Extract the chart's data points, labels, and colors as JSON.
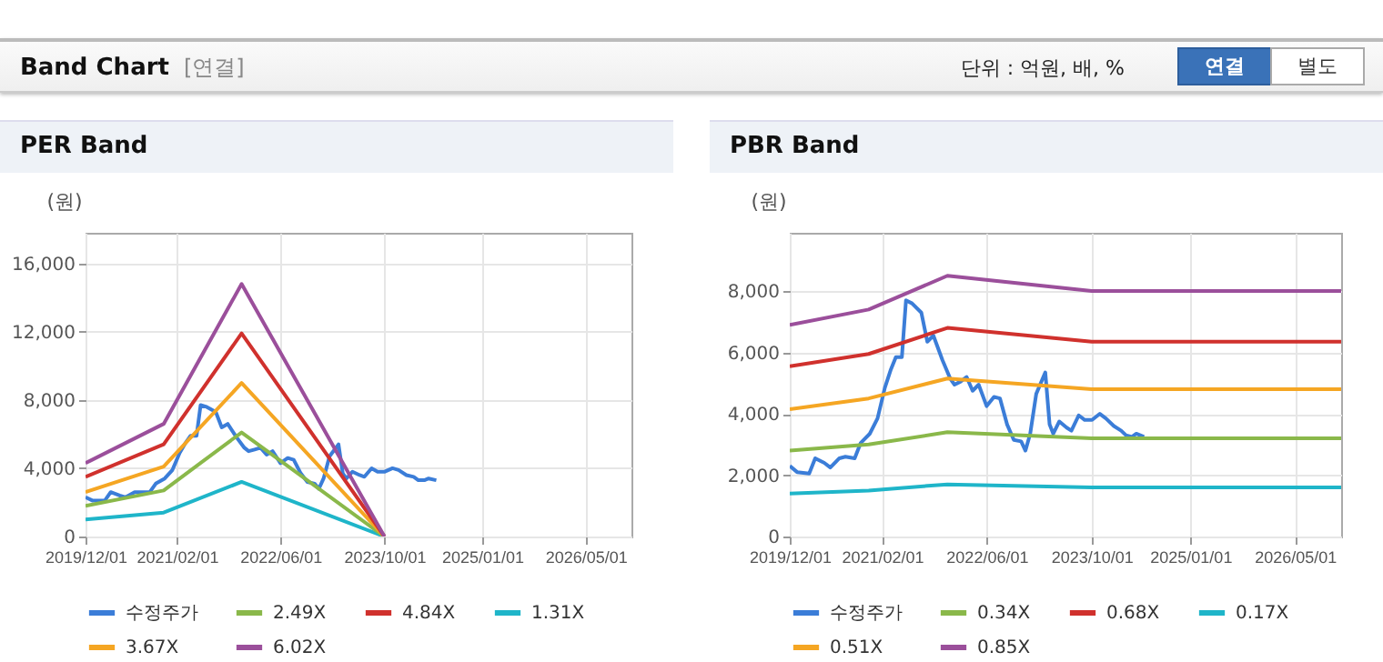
{
  "chart_data": [
    {
      "type": "other",
      "title": "Band Chart",
      "subtitle": "[연결]",
      "annotations": [
        "단위 : 억원, 배, %",
        "연결",
        "별도"
      ]
    },
    {
      "type": "line",
      "title": "PER Band",
      "ylabel": "(원)",
      "legend": "bottom",
      "grid": true,
      "xlim": [
        "2019-12-01",
        "2026-12-01"
      ],
      "xticks": [
        {
          "value": "2019-12-01",
          "label": "2019/12/01"
        },
        {
          "value": "2021-02-01",
          "label": "2021/02/01"
        },
        {
          "value": "2022-06-01",
          "label": "2022/06/01"
        },
        {
          "value": "2023-10-01",
          "label": "2023/10/01"
        },
        {
          "value": "2025-01-01",
          "label": "2025/01/01"
        },
        {
          "value": "2026-05-01",
          "label": "2026/05/01"
        }
      ],
      "ylim": [
        0,
        17800
      ],
      "yticks": [
        0,
        {
          "value": 4000,
          "label": "4,000"
        },
        {
          "value": 8000,
          "label": "8,000"
        },
        {
          "value": 12000,
          "label": "12,000"
        },
        {
          "value": 16000,
          "label": "16,000"
        }
      ],
      "series": [
        {
          "name": "수정주가",
          "color": "#3b7dd8",
          "x": [
            "2019-12-01",
            "2020-01-04",
            "2020-02-29",
            "2020-03-28",
            "2020-05-09",
            "2020-06-06",
            "2020-07-18",
            "2020-08-15",
            "2020-09-27",
            "2020-10-25",
            "2020-12-06",
            "2021-01-11",
            "2021-02-14",
            "2021-03-14",
            "2021-04-06",
            "2021-05-04",
            "2021-05-23",
            "2021-06-20",
            "2021-08-02",
            "2021-08-30",
            "2021-09-27",
            "2021-11-08",
            "2021-12-14",
            "2022-01-03",
            "2022-01-31",
            "2022-02-28",
            "2022-03-28",
            "2022-04-25",
            "2022-06-01",
            "2022-07-05",
            "2022-08-02",
            "2022-09-04",
            "2022-10-05",
            "2022-11-08",
            "2022-11-28",
            "2022-12-20",
            "2023-01-17",
            "2023-02-28",
            "2023-03-20",
            "2023-04-06",
            "2023-05-04",
            "2023-06-07",
            "2023-06-29",
            "2023-08-02",
            "2023-08-30",
            "2023-10-03",
            "2023-11-08",
            "2023-12-06",
            "2024-01-12",
            "2024-02-15",
            "2024-03-08",
            "2024-04-05",
            "2024-04-25",
            "2024-05-31"
          ],
          "values": [
            2300,
            2100,
            2100,
            2600,
            2400,
            2300,
            2600,
            2600,
            2600,
            3100,
            3400,
            3900,
            4900,
            5500,
            5900,
            5900,
            7700,
            7600,
            7300,
            6400,
            6600,
            5800,
            5200,
            5000,
            5100,
            5200,
            4800,
            5000,
            4300,
            4600,
            4500,
            3700,
            3200,
            3100,
            2800,
            3400,
            4700,
            5400,
            3700,
            3400,
            3800,
            3600,
            3500,
            4000,
            3800,
            3800,
            4000,
            3900,
            3600,
            3500,
            3300,
            3300,
            3400,
            3300
          ]
        },
        {
          "name": "1.31X",
          "color": "#1fb5c9",
          "x": [
            "2019-12-01",
            "2020-12-01",
            "2021-12-01",
            "2023-10-01"
          ],
          "values": [
            1000,
            1400,
            3200,
            0
          ]
        },
        {
          "name": "2.49X",
          "color": "#8ab84a",
          "x": [
            "2019-12-01",
            "2020-12-01",
            "2021-12-01",
            "2023-10-01"
          ],
          "values": [
            1800,
            2700,
            6100,
            0
          ]
        },
        {
          "name": "3.67X",
          "color": "#f5a623",
          "x": [
            "2019-12-01",
            "2020-12-01",
            "2021-12-01",
            "2023-10-01"
          ],
          "values": [
            2600,
            4100,
            9000,
            0
          ]
        },
        {
          "name": "4.84X",
          "color": "#d0312d",
          "x": [
            "2019-12-01",
            "2020-12-01",
            "2021-12-01",
            "2023-10-01"
          ],
          "values": [
            3500,
            5400,
            11900,
            0
          ]
        },
        {
          "name": "6.02X",
          "color": "#9b4f9b",
          "x": [
            "2019-12-01",
            "2020-12-01",
            "2021-12-01",
            "2023-10-01"
          ],
          "values": [
            4300,
            6600,
            14800,
            0
          ]
        }
      ]
    },
    {
      "type": "line",
      "title": "PBR Band",
      "ylabel": "(원)",
      "legend": "bottom",
      "grid": true,
      "xlim": [
        "2019-12-01",
        "2026-12-01"
      ],
      "xticks": [
        {
          "value": "2019-12-01",
          "label": "2019/12/01"
        },
        {
          "value": "2021-02-01",
          "label": "2021/02/01"
        },
        {
          "value": "2022-06-01",
          "label": "2022/06/01"
        },
        {
          "value": "2023-10-01",
          "label": "2023/10/01"
        },
        {
          "value": "2025-01-01",
          "label": "2025/01/01"
        },
        {
          "value": "2026-05-01",
          "label": "2026/05/01"
        }
      ],
      "ylim": [
        0,
        9900
      ],
      "yticks": [
        0,
        {
          "value": 2000,
          "label": "2,000"
        },
        {
          "value": 4000,
          "label": "4,000"
        },
        {
          "value": 6000,
          "label": "6,000"
        },
        {
          "value": 8000,
          "label": "8,000"
        }
      ],
      "series": [
        {
          "name": "수정주가",
          "color": "#3b7dd8",
          "x": [
            "2019-12-01",
            "2020-01-04",
            "2020-02-29",
            "2020-03-28",
            "2020-05-09",
            "2020-06-06",
            "2020-07-18",
            "2020-08-15",
            "2020-09-27",
            "2020-10-25",
            "2020-12-06",
            "2021-01-11",
            "2021-02-14",
            "2021-03-14",
            "2021-04-06",
            "2021-05-04",
            "2021-05-23",
            "2021-06-20",
            "2021-08-02",
            "2021-08-30",
            "2021-09-27",
            "2021-11-08",
            "2021-12-14",
            "2022-01-03",
            "2022-01-31",
            "2022-02-28",
            "2022-03-28",
            "2022-04-25",
            "2022-06-01",
            "2022-07-05",
            "2022-08-02",
            "2022-09-04",
            "2022-10-05",
            "2022-11-08",
            "2022-11-28",
            "2022-12-20",
            "2023-01-17",
            "2023-02-28",
            "2023-03-20",
            "2023-04-06",
            "2023-05-04",
            "2023-06-07",
            "2023-06-29",
            "2023-08-02",
            "2023-08-30",
            "2023-10-03",
            "2023-11-08",
            "2023-12-06",
            "2024-01-12",
            "2024-02-15",
            "2024-03-08",
            "2024-04-05",
            "2024-04-25",
            "2024-05-31"
          ],
          "values": [
            2300,
            2100,
            2050,
            2550,
            2400,
            2250,
            2550,
            2600,
            2550,
            3050,
            3350,
            3850,
            4850,
            5450,
            5850,
            5850,
            7700,
            7600,
            7300,
            6350,
            6550,
            5750,
            5150,
            4950,
            5050,
            5200,
            4750,
            4950,
            4250,
            4550,
            4500,
            3650,
            3150,
            3100,
            2800,
            3350,
            4650,
            5350,
            3650,
            3350,
            3750,
            3550,
            3450,
            3950,
            3800,
            3800,
            4000,
            3850,
            3600,
            3450,
            3300,
            3250,
            3350,
            3250
          ]
        },
        {
          "name": "0.17X",
          "color": "#1fb5c9",
          "x": [
            "2019-12-01",
            "2020-12-01",
            "2021-12-01",
            "2023-10-01",
            "2026-12-01"
          ],
          "values": [
            1400,
            1500,
            1700,
            1600,
            1600
          ]
        },
        {
          "name": "0.34X",
          "color": "#8ab84a",
          "x": [
            "2019-12-01",
            "2020-12-01",
            "2021-12-01",
            "2023-10-01",
            "2026-12-01"
          ],
          "values": [
            2800,
            3000,
            3400,
            3200,
            3200
          ]
        },
        {
          "name": "0.51X",
          "color": "#f5a623",
          "x": [
            "2019-12-01",
            "2020-12-01",
            "2021-12-01",
            "2023-10-01",
            "2026-12-01"
          ],
          "values": [
            4150,
            4500,
            5150,
            4800,
            4800
          ]
        },
        {
          "name": "0.68X",
          "color": "#d0312d",
          "x": [
            "2019-12-01",
            "2020-12-01",
            "2021-12-01",
            "2023-10-01",
            "2026-12-01"
          ],
          "values": [
            5550,
            5950,
            6800,
            6350,
            6350
          ]
        },
        {
          "name": "0.85X",
          "color": "#9b4f9b",
          "x": [
            "2019-12-01",
            "2020-12-01",
            "2021-12-01",
            "2023-10-01",
            "2026-12-01"
          ],
          "values": [
            6900,
            7400,
            8500,
            8000,
            8000
          ]
        }
      ]
    }
  ]
}
